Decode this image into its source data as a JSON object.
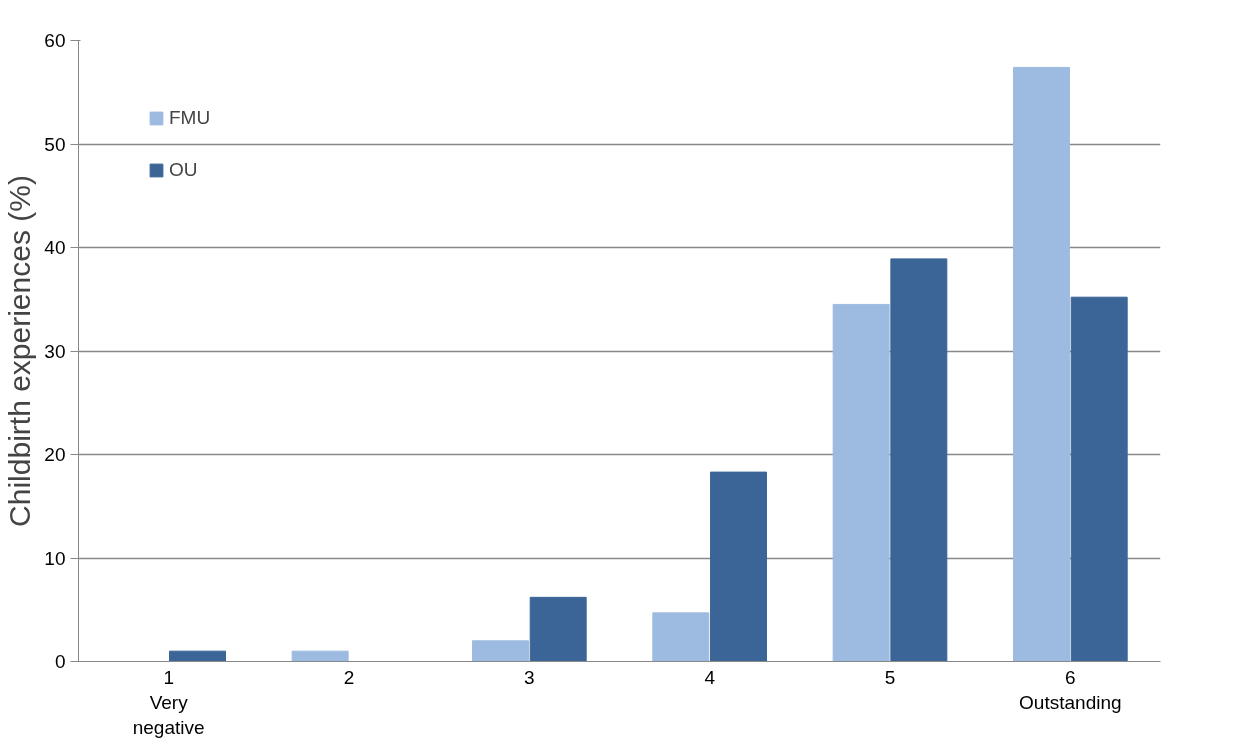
{
  "chart_data": {
    "type": "bar",
    "ylabel": "Childbirth experiences (%)",
    "categories": [
      "1\nVery\nnegative",
      "2",
      "3",
      "4",
      "5",
      "6\nOutstanding"
    ],
    "series": [
      {
        "name": "FMU",
        "color": "#9dbbe0",
        "values": [
          0,
          1.0,
          2.0,
          4.7,
          34.5,
          57.4
        ]
      },
      {
        "name": "OU",
        "color": "#3b6597",
        "values": [
          1.0,
          0,
          6.2,
          18.3,
          38.9,
          35.2
        ]
      }
    ],
    "ylim": [
      0,
      60
    ],
    "yticks": [
      0,
      10,
      20,
      30,
      40,
      50,
      60
    ],
    "grid": "y",
    "legend": "top left"
  }
}
